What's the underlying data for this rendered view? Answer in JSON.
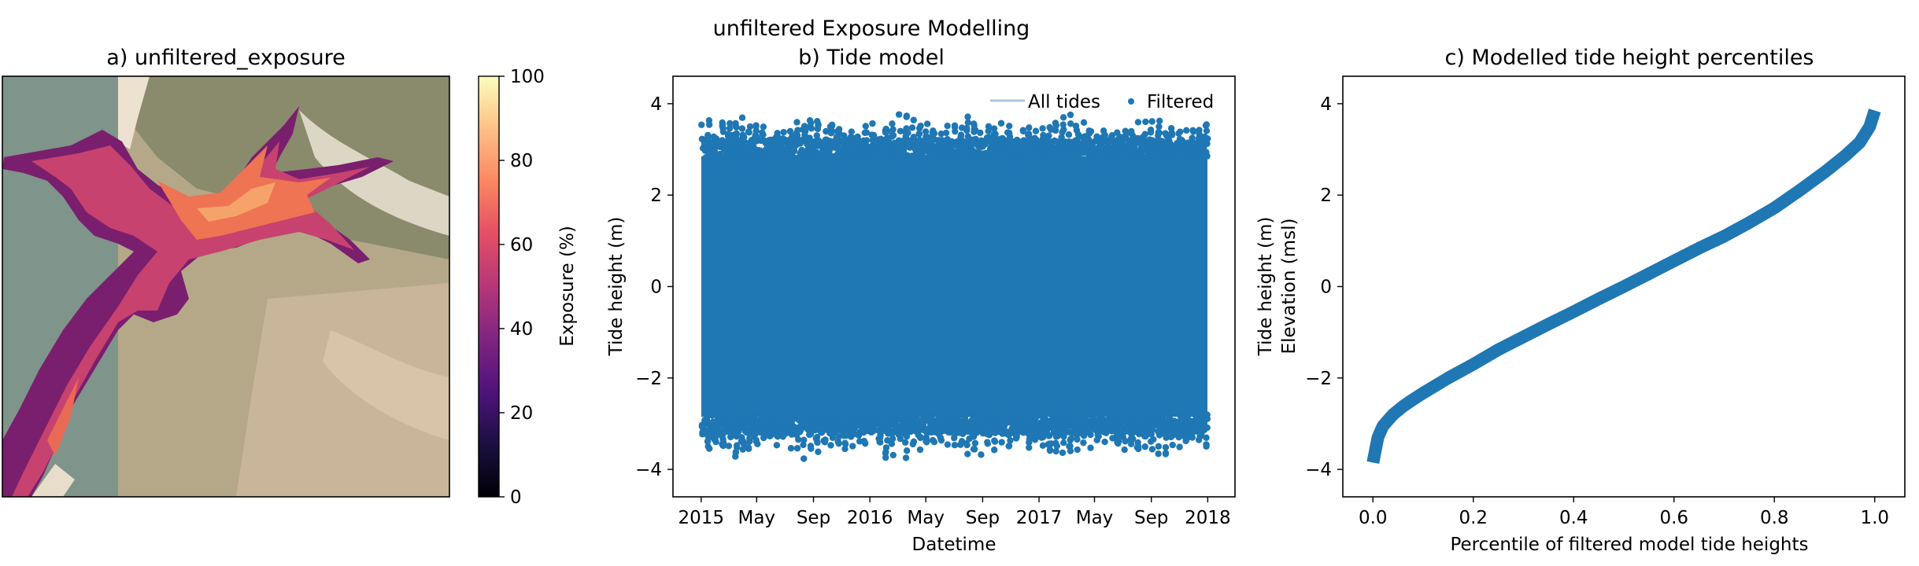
{
  "figure": {
    "suptitle_line1": "unfiltered Exposure Modelling"
  },
  "colors": {
    "series": "#1f77b4",
    "all_tides": "#a6c8e2"
  },
  "chart_data": [
    {
      "type": "heatmap",
      "title": "a) unfiltered_exposure",
      "colormap": "magma",
      "colorbar": {
        "label": "Exposure (%)",
        "range": [
          0,
          100
        ],
        "ticks": [
          0,
          20,
          40,
          60,
          80,
          100
        ]
      },
      "axes_visible": false
    },
    {
      "type": "scatter",
      "title": "b) Tide model",
      "xlabel": "Datetime",
      "ylabel": "Tide height (m)",
      "xlim": [
        "2014-11-01",
        "2018-03-01"
      ],
      "ylim": [
        -4.6,
        4.6
      ],
      "x_tick_labels": [
        {
          "date": "2015-01-01",
          "label": "2015"
        },
        {
          "date": "2015-05-01",
          "label": "May"
        },
        {
          "date": "2015-09-01",
          "label": "Sep"
        },
        {
          "date": "2016-01-01",
          "label": "2016"
        },
        {
          "date": "2016-05-01",
          "label": "May"
        },
        {
          "date": "2016-09-01",
          "label": "Sep"
        },
        {
          "date": "2017-01-01",
          "label": "2017"
        },
        {
          "date": "2017-05-01",
          "label": "May"
        },
        {
          "date": "2017-09-01",
          "label": "Sep"
        },
        {
          "date": "2018-01-01",
          "label": "2018"
        }
      ],
      "y_ticks": [
        -4,
        -2,
        0,
        2,
        4
      ],
      "legend": {
        "placement": "top-right",
        "entries": [
          "All tides",
          "Filtered"
        ]
      },
      "series": [
        {
          "name": "All tides",
          "style": "line"
        },
        {
          "name": "Filtered",
          "style": "points",
          "x_range": [
            "2015-01-01",
            "2018-01-01"
          ],
          "envelope_approx": {
            "typical_max": 3.2,
            "peak_max": 3.8,
            "typical_min": -3.2,
            "peak_min": -3.8
          }
        }
      ]
    },
    {
      "type": "line",
      "title": "c) Modelled tide height percentiles",
      "xlabel": "Percentile of filtered model tide heights",
      "ylabel_lines": [
        "Tide height (m)",
        "Elevation (msl)"
      ],
      "xlim": [
        -0.06,
        1.06
      ],
      "ylim": [
        -4.6,
        4.6
      ],
      "x_ticks": [
        0.0,
        0.2,
        0.4,
        0.6,
        0.8,
        1.0
      ],
      "x_tick_labels": [
        "0.0",
        "0.2",
        "0.4",
        "0.6",
        "0.8",
        "1.0"
      ],
      "y_ticks": [
        -4,
        -2,
        0,
        2,
        4
      ],
      "series": [
        {
          "name": "",
          "x": [
            0.0,
            0.01,
            0.02,
            0.04,
            0.06,
            0.08,
            0.1,
            0.15,
            0.2,
            0.25,
            0.3,
            0.35,
            0.4,
            0.45,
            0.5,
            0.55,
            0.6,
            0.65,
            0.7,
            0.75,
            0.8,
            0.85,
            0.9,
            0.94,
            0.97,
            0.99,
            1.0
          ],
          "y": [
            -3.85,
            -3.3,
            -3.05,
            -2.8,
            -2.62,
            -2.47,
            -2.33,
            -2.0,
            -1.7,
            -1.38,
            -1.1,
            -0.82,
            -0.55,
            -0.27,
            0.0,
            0.28,
            0.56,
            0.84,
            1.1,
            1.4,
            1.72,
            2.1,
            2.5,
            2.85,
            3.15,
            3.5,
            3.85
          ]
        }
      ]
    }
  ]
}
